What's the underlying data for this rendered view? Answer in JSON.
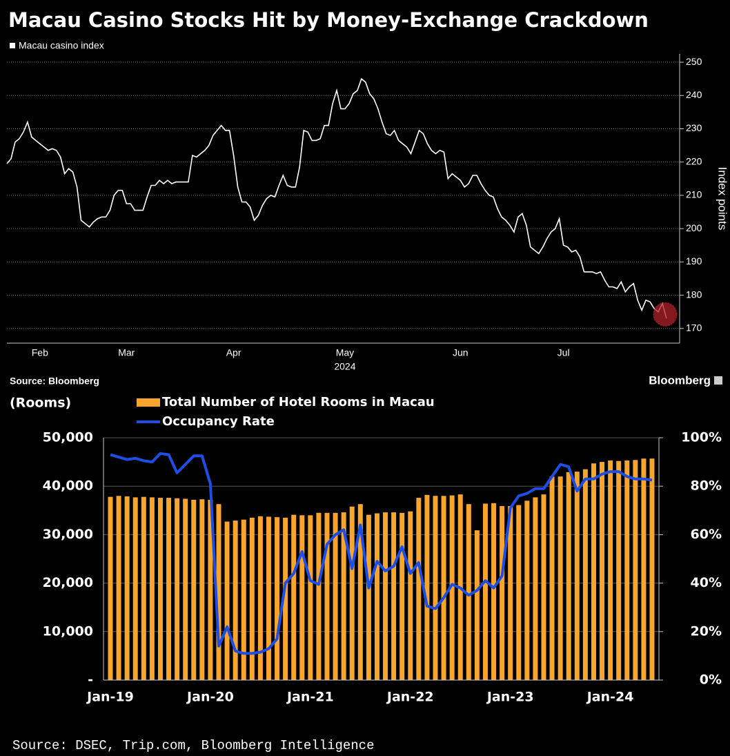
{
  "chart_data": [
    {
      "type": "line",
      "title": "Macau Casino Stocks Hit by Money-Exchange Crackdown",
      "series": [
        {
          "name": "Macau casino index",
          "color": "#ffffff",
          "values": [
            219.5,
            221,
            226,
            227,
            229,
            232,
            227.5,
            226.5,
            225.5,
            224.5,
            223.5,
            224,
            223.5,
            221.5,
            216.5,
            218,
            217,
            212.5,
            202.5,
            201.5,
            200.5,
            202,
            203,
            203.5,
            203.5,
            205.5,
            210,
            211.5,
            211.5,
            207.5,
            207.5,
            205.5,
            205.5,
            205.5,
            209.5,
            213,
            213,
            214.5,
            213.5,
            214.5,
            213.5,
            214,
            214,
            214,
            214,
            222,
            221.5,
            222.5,
            223.5,
            225,
            228,
            229.5,
            231,
            229.5,
            229.5,
            222,
            212.5,
            208,
            208,
            206.5,
            202.5,
            204,
            207,
            209,
            210,
            209.5,
            213,
            216,
            213,
            212.5,
            212.5,
            218.5,
            229.5,
            229,
            226.5,
            226.5,
            227,
            231,
            231,
            237.5,
            241.5,
            236,
            236,
            237.5,
            240.5,
            241.5,
            245,
            244,
            240.5,
            239,
            236,
            232,
            228.5,
            228,
            229.5,
            226.5,
            225.5,
            224.5,
            222.5,
            226,
            229.5,
            228.5,
            225.5,
            223.5,
            222.5,
            223.5,
            223,
            215,
            216.5,
            215.5,
            214.5,
            212.5,
            213.5,
            216,
            216,
            213.5,
            211.5,
            210,
            209.5,
            206,
            203.5,
            202.5,
            201,
            199,
            203.5,
            204.5,
            201,
            194.5,
            193.5,
            192.5,
            194.5,
            197,
            199,
            200,
            203,
            195,
            194.5,
            193,
            193.5,
            191.5,
            187,
            187,
            187,
            186.5,
            187,
            184.5,
            182.5,
            182.5,
            182,
            184,
            181,
            182.5,
            183.5,
            178.5,
            175.5,
            178.5,
            178,
            176,
            175,
            177.5,
            173
          ]
        }
      ],
      "categories": [
        null,
        null,
        null,
        null,
        null,
        null,
        null,
        null,
        "Feb",
        null,
        null,
        null,
        null,
        null,
        null,
        null,
        null,
        null,
        null,
        null,
        null,
        null,
        null,
        null,
        null,
        null,
        null,
        null,
        null,
        "Mar",
        null,
        null,
        null,
        null,
        null,
        null,
        null,
        null,
        null,
        null,
        null,
        null,
        null,
        null,
        null,
        null,
        null,
        null,
        null,
        null,
        null,
        null,
        null,
        null,
        null,
        "Apr",
        null,
        null,
        null,
        null,
        null,
        null,
        null,
        null,
        null,
        null,
        null,
        null,
        null,
        null,
        null,
        null,
        null,
        null,
        null,
        null,
        null,
        null,
        null,
        null,
        null,
        null,
        "May",
        null,
        null,
        null,
        null,
        null,
        null,
        null,
        null,
        null,
        null,
        null,
        null,
        null,
        null,
        null,
        null,
        null,
        null,
        null,
        null,
        null,
        null,
        null,
        null,
        null,
        null,
        null,
        "Jun",
        null,
        null,
        null,
        null,
        null,
        null,
        null,
        null,
        null,
        null,
        null,
        null,
        null,
        null,
        null,
        null,
        null,
        null,
        null,
        null,
        null,
        null,
        null,
        null,
        "Jul",
        null,
        null,
        null,
        null,
        null,
        null,
        null,
        null,
        null,
        null,
        null,
        null,
        null,
        null,
        null,
        null,
        null,
        null,
        null,
        null,
        null,
        null,
        null,
        null,
        null
      ],
      "xlabel": "2024",
      "ylabel": "Index points",
      "ylim": [
        165.6,
        252.5
      ],
      "yticks": [
        170,
        180,
        190,
        200,
        210,
        220,
        230,
        240,
        250
      ],
      "grid": true,
      "highlight_color": "#b0202a",
      "source": "Source: Bloomberg",
      "brand": "Bloomberg"
    },
    {
      "type": "bar_line",
      "ylabel": "(Rooms)",
      "series": [
        {
          "name": "Total Number of Hotel Rooms in Macau",
          "type": "bar",
          "color": "#f8a52e",
          "values": [
            37800,
            38000,
            37900,
            37700,
            37800,
            37700,
            37600,
            37600,
            37500,
            37400,
            37200,
            37300,
            37200,
            36300,
            32700,
            32900,
            33100,
            33500,
            33800,
            33700,
            33600,
            33500,
            34100,
            34000,
            34000,
            34500,
            34500,
            34500,
            34600,
            35800,
            36300,
            34100,
            34400,
            34600,
            34600,
            34500,
            34800,
            37600,
            38200,
            38000,
            38000,
            38100,
            38300,
            36300,
            30900,
            36400,
            36500,
            35900,
            35900,
            36100,
            37000,
            37700,
            38300,
            42000,
            42000,
            42900,
            43000,
            43500,
            44700,
            45000,
            45300,
            45200,
            45300,
            45400,
            45700,
            45700
          ]
        },
        {
          "name": "Occupancy Rate",
          "type": "line",
          "axis": "y2",
          "color": "#1d4fe6",
          "values": [
            93,
            92,
            91,
            91.5,
            90.5,
            90,
            93.5,
            93,
            85.5,
            89,
            92.5,
            92.5,
            81,
            14,
            22,
            12,
            11,
            11,
            11.5,
            13,
            17,
            40,
            44,
            53,
            41,
            39.5,
            56,
            60,
            62,
            46,
            64,
            38,
            49,
            45,
            47,
            55,
            44,
            48.5,
            30.5,
            29.5,
            34,
            39.5,
            38,
            35,
            37,
            41,
            38,
            43,
            71,
            76,
            77,
            79,
            79,
            84,
            89,
            88,
            78,
            83,
            83,
            85,
            86,
            86,
            84,
            83,
            83,
            82.5
          ]
        }
      ],
      "categories": [
        "Jan-19",
        null,
        null,
        null,
        null,
        null,
        null,
        null,
        null,
        null,
        null,
        null,
        "Jan-20",
        null,
        null,
        null,
        null,
        null,
        null,
        null,
        null,
        null,
        null,
        null,
        "Jan-21",
        null,
        null,
        null,
        null,
        null,
        null,
        null,
        null,
        null,
        null,
        null,
        "Jan-22",
        null,
        null,
        null,
        null,
        null,
        null,
        null,
        null,
        null,
        null,
        null,
        "Jan-23",
        null,
        null,
        null,
        null,
        null,
        null,
        null,
        null,
        null,
        null,
        null,
        "Jan-24",
        null,
        null,
        null,
        null,
        null
      ],
      "ylim": [
        0,
        50000
      ],
      "yticks": [
        {
          "value": 0,
          "label": "-"
        },
        {
          "value": 10000,
          "label": "10,000"
        },
        {
          "value": 20000,
          "label": "20,000"
        },
        {
          "value": 30000,
          "label": "30,000"
        },
        {
          "value": 40000,
          "label": "40,000"
        },
        {
          "value": 50000,
          "label": "50,000"
        }
      ],
      "y2lim": [
        0,
        100
      ],
      "y2ticks": [
        {
          "value": 0,
          "label": "0%"
        },
        {
          "value": 20,
          "label": "20%"
        },
        {
          "value": 40,
          "label": "40%"
        },
        {
          "value": 60,
          "label": "60%"
        },
        {
          "value": 80,
          "label": "80%"
        },
        {
          "value": 100,
          "label": "100%"
        }
      ],
      "grid": true,
      "source": "Source: DSEC, Trip.com, Bloomberg Intelligence"
    }
  ]
}
